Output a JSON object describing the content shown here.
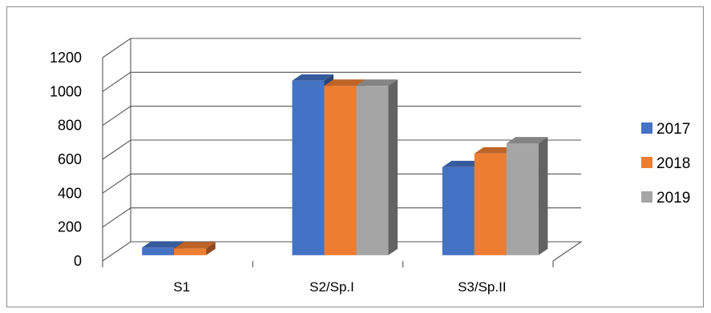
{
  "chart_data": {
    "type": "bar",
    "title": "",
    "xlabel": "",
    "ylabel": "",
    "categories": [
      "S1",
      "S2/Sp.I",
      "S3/Sp.II"
    ],
    "series": [
      {
        "name": "2017",
        "color": "#4472c4",
        "values": [
          45,
          1030,
          520
        ]
      },
      {
        "name": "2018",
        "color": "#ed7d31",
        "values": [
          40,
          1000,
          600
        ]
      },
      {
        "name": "2019",
        "color": "#a5a5a5",
        "values": [
          0,
          1000,
          660
        ]
      }
    ],
    "ylim": [
      0,
      1200
    ],
    "yticks": [
      "0",
      "200",
      "400",
      "600",
      "800",
      "1000",
      "1200"
    ],
    "grid": true,
    "legend_position": "right",
    "style": "3d-clustered-column"
  }
}
